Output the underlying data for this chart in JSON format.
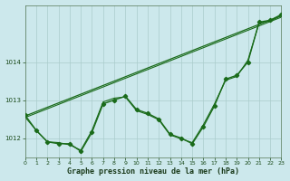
{
  "background_color": "#cce8ec",
  "grid_color": "#aacccc",
  "line_color": "#1a6b1a",
  "title": "Graphe pression niveau de la mer (hPa)",
  "xlim": [
    0,
    23
  ],
  "ylim": [
    1011.5,
    1015.5
  ],
  "yticks": [
    1012,
    1013,
    1014
  ],
  "xticks": [
    0,
    1,
    2,
    3,
    4,
    5,
    6,
    7,
    8,
    9,
    10,
    11,
    12,
    13,
    14,
    15,
    16,
    17,
    18,
    19,
    20,
    21,
    22,
    23
  ],
  "series": [
    {
      "x": [
        0,
        1,
        2,
        3,
        4,
        5,
        6,
        7,
        8,
        9,
        10,
        11,
        12,
        13,
        14,
        15,
        16,
        17,
        18,
        19,
        20,
        21,
        22,
        23
      ],
      "y": [
        1012.6,
        1012.2,
        1011.9,
        1011.85,
        1011.85,
        1011.65,
        1012.15,
        1012.9,
        1013.0,
        1013.1,
        1012.75,
        1012.65,
        1012.5,
        1012.1,
        1012.0,
        1011.85,
        1012.3,
        1012.85,
        1013.55,
        1013.65,
        1014.0,
        1015.05,
        1015.1,
        1015.25
      ],
      "marker": "D",
      "markersize": 2.2,
      "linewidth": 1.0,
      "zorder": 3
    },
    {
      "x": [
        0,
        1,
        2,
        3,
        4,
        5,
        6,
        7,
        8,
        9,
        10,
        11,
        12,
        13,
        14,
        15,
        16,
        17,
        18,
        19,
        20,
        21,
        22,
        23
      ],
      "y": [
        1012.55,
        1012.2,
        1011.9,
        1011.88,
        1011.82,
        1011.68,
        1012.2,
        1012.95,
        1013.05,
        1013.08,
        1012.72,
        1012.62,
        1012.48,
        1012.08,
        1011.98,
        1011.88,
        1012.35,
        1012.9,
        1013.52,
        1013.62,
        1014.05,
        1015.02,
        1015.08,
        1015.22
      ],
      "marker": null,
      "markersize": 0,
      "linewidth": 0.8,
      "zorder": 2
    },
    {
      "x": [
        0,
        23
      ],
      "y": [
        1012.58,
        1015.22
      ],
      "marker": null,
      "markersize": 0,
      "linewidth": 0.9,
      "zorder": 2
    },
    {
      "x": [
        0,
        23
      ],
      "y": [
        1012.54,
        1015.18
      ],
      "marker": null,
      "markersize": 0,
      "linewidth": 0.8,
      "zorder": 2
    }
  ]
}
